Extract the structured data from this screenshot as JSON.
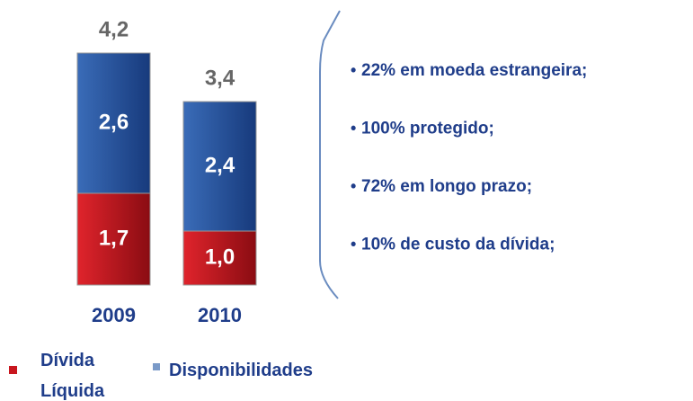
{
  "chart_data": {
    "type": "stacked_bar",
    "categories": [
      "2009",
      "2010"
    ],
    "series": [
      {
        "name": "Dívida Líquida",
        "color": "#c8161e",
        "values": [
          1.7,
          1.0
        ],
        "value_labels": [
          "1,7",
          "1,0"
        ]
      },
      {
        "name": "Disponibilidades",
        "color": "#2456a0",
        "values": [
          2.6,
          2.4
        ],
        "value_labels": [
          "2,6",
          "2,4"
        ]
      }
    ],
    "totals": [
      4.2,
      3.4
    ],
    "total_labels": [
      "4,2",
      "3,4"
    ],
    "bullets": [
      "22% em moeda estrangeira;",
      "100% protegido;",
      "72% em longo prazo;",
      "10% de custo da dívida;"
    ]
  }
}
